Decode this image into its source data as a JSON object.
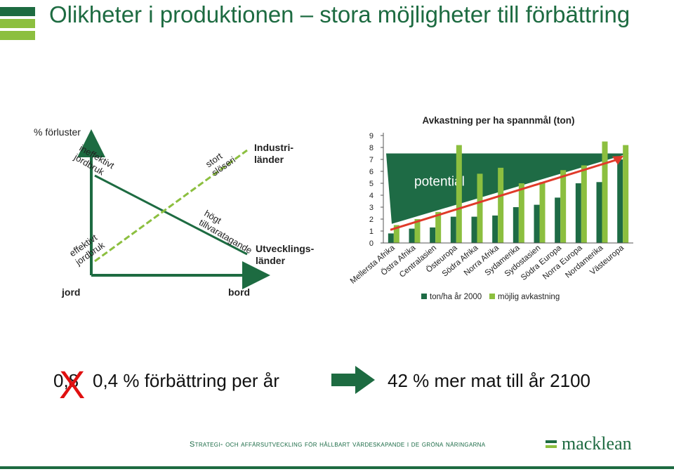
{
  "slide": {
    "title": "Olikheter i produktionen – stora möjligheter till förbättring",
    "accent_color": "#1d6b41",
    "bar_color": "#8cbf3f"
  },
  "diagram": {
    "y_axis_label": "% förluster",
    "x_axis_left": "jord",
    "x_axis_right": "bord",
    "line_labels": {
      "inefficient_farming": "ineffektivt jordbruk",
      "large_waste": "stort slöseri",
      "efficient_farming": "effektivt jordbruk",
      "high_uptake": "högt tillvaratagande"
    },
    "group_industrial": "Industri-\nländer",
    "group_developing": "Utvecklings-\nländer"
  },
  "chart_data": {
    "type": "bar",
    "title": "Avkastning per ha spannmål (ton)",
    "categories": [
      "Mellersta Afrika",
      "Östra Afrika",
      "Centralasien",
      "Östeuropa",
      "Södra Afrika",
      "Norra Afrika",
      "Sydamerika",
      "Sydostasien",
      "Södra Europa",
      "Norra Europa",
      "Nordamerika",
      "Västeuropa"
    ],
    "series": [
      {
        "name": "ton/ha år 2000",
        "color": "#1e6b45",
        "values": [
          0.8,
          1.2,
          1.3,
          2.2,
          2.2,
          2.3,
          3.0,
          3.2,
          3.8,
          5.0,
          5.1,
          7.0
        ]
      },
      {
        "name": "möjlig avkastning",
        "color": "#8cbf3f",
        "values": [
          1.5,
          2.0,
          2.6,
          8.2,
          5.8,
          6.3,
          5.0,
          5.1,
          6.1,
          6.5,
          8.5,
          8.2
        ]
      }
    ],
    "y_ticks": [
      0,
      1,
      2,
      3,
      4,
      5,
      6,
      7,
      8,
      9
    ],
    "ylim": [
      0,
      9
    ],
    "annotation": "potential",
    "legend_position": "bottom"
  },
  "message": {
    "old_value": "0,8",
    "cross": "X",
    "new_text": "0,4 % förbättring per år",
    "result_text": "42 % mer mat till år 2100"
  },
  "footer": {
    "tagline": "Strategi- och affärsutveckling för hållbart värdeskapande i de gröna näringarna",
    "logo": "macklean"
  }
}
